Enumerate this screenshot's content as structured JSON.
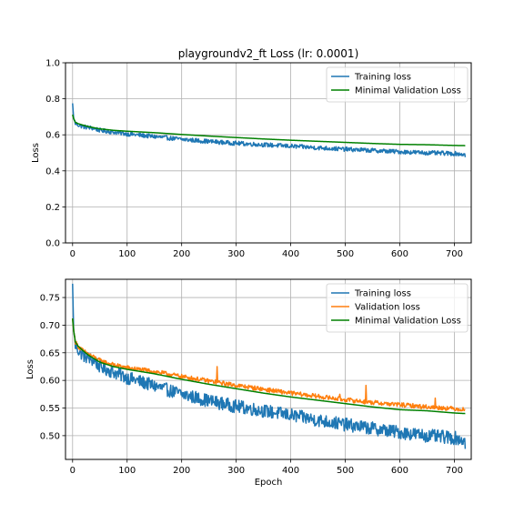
{
  "chart_data": [
    {
      "type": "line",
      "title": "playgroundv2_ft Loss (lr: 0.0001)",
      "xlabel": "",
      "ylabel": "Loss",
      "xlim": [
        -13,
        731
      ],
      "ylim": [
        0.0,
        1.0
      ],
      "xticks": [
        0,
        100,
        200,
        300,
        400,
        500,
        600,
        700
      ],
      "yticks": [
        0.0,
        0.2,
        0.4,
        0.6,
        0.8,
        1.0
      ],
      "ytick_labels": [
        "0.0",
        "0.2",
        "0.4",
        "0.6",
        "0.8",
        "1.0"
      ],
      "grid": true,
      "legend_position": "top-right",
      "series": [
        {
          "name": "Training loss",
          "color": "#1f77b4",
          "x": [
            0,
            2,
            5,
            10,
            20,
            30,
            40,
            50,
            75,
            100,
            150,
            200,
            250,
            300,
            350,
            400,
            450,
            500,
            550,
            600,
            650,
            700,
            710,
            719,
            720
          ],
          "y": [
            0.775,
            0.69,
            0.665,
            0.655,
            0.645,
            0.64,
            0.635,
            0.625,
            0.615,
            0.605,
            0.59,
            0.575,
            0.563,
            0.553,
            0.545,
            0.537,
            0.528,
            0.52,
            0.513,
            0.506,
            0.5,
            0.496,
            0.494,
            0.49,
            0.476
          ],
          "noise": 0.012
        },
        {
          "name": "Minimal Validation Loss",
          "color": "#008000",
          "x": [
            0,
            2,
            5,
            10,
            20,
            30,
            50,
            75,
            100,
            150,
            200,
            250,
            300,
            350,
            400,
            450,
            500,
            550,
            600,
            650,
            700,
            720
          ],
          "y": [
            0.712,
            0.69,
            0.67,
            0.662,
            0.653,
            0.645,
            0.633,
            0.625,
            0.62,
            0.612,
            0.602,
            0.593,
            0.585,
            0.577,
            0.57,
            0.564,
            0.558,
            0.552,
            0.547,
            0.545,
            0.541,
            0.54
          ],
          "step": true
        }
      ]
    },
    {
      "type": "line",
      "title": "",
      "xlabel": "Epoch",
      "ylabel": "Loss",
      "xlim": [
        -13,
        731
      ],
      "ylim": [
        0.457,
        0.783
      ],
      "xticks": [
        0,
        100,
        200,
        300,
        400,
        500,
        600,
        700
      ],
      "yticks": [
        0.5,
        0.55,
        0.6,
        0.65,
        0.7,
        0.75
      ],
      "ytick_labels": [
        "0.50",
        "0.55",
        "0.60",
        "0.65",
        "0.70",
        "0.75"
      ],
      "grid": true,
      "legend_position": "top-right",
      "series": [
        {
          "name": "Training loss",
          "color": "#1f77b4",
          "x": [
            0,
            2,
            5,
            10,
            20,
            30,
            40,
            50,
            75,
            100,
            150,
            200,
            250,
            300,
            350,
            400,
            450,
            500,
            550,
            600,
            650,
            700,
            710,
            719,
            720
          ],
          "y": [
            0.775,
            0.69,
            0.665,
            0.655,
            0.645,
            0.64,
            0.635,
            0.625,
            0.615,
            0.605,
            0.59,
            0.575,
            0.563,
            0.553,
            0.545,
            0.537,
            0.528,
            0.52,
            0.513,
            0.506,
            0.5,
            0.496,
            0.494,
            0.49,
            0.476
          ],
          "noise": 0.012
        },
        {
          "name": "Validation loss",
          "color": "#ff7f0e",
          "x": [
            0,
            2,
            5,
            10,
            20,
            30,
            50,
            75,
            100,
            150,
            200,
            250,
            300,
            350,
            400,
            450,
            500,
            550,
            600,
            650,
            700,
            720
          ],
          "y": [
            0.712,
            0.69,
            0.67,
            0.662,
            0.653,
            0.647,
            0.636,
            0.628,
            0.623,
            0.616,
            0.607,
            0.599,
            0.591,
            0.584,
            0.577,
            0.571,
            0.565,
            0.56,
            0.556,
            0.552,
            0.549,
            0.547
          ],
          "noise": 0.004,
          "spikes": [
            [
              265,
              0.625
            ],
            [
              490,
              0.575
            ],
            [
              538,
              0.591
            ],
            [
              665,
              0.568
            ]
          ]
        },
        {
          "name": "Minimal Validation Loss",
          "color": "#008000",
          "x": [
            0,
            2,
            5,
            10,
            20,
            30,
            50,
            75,
            100,
            150,
            200,
            250,
            300,
            350,
            400,
            450,
            500,
            550,
            600,
            650,
            700,
            720
          ],
          "y": [
            0.712,
            0.69,
            0.67,
            0.662,
            0.653,
            0.645,
            0.633,
            0.625,
            0.62,
            0.612,
            0.602,
            0.593,
            0.585,
            0.577,
            0.57,
            0.564,
            0.558,
            0.552,
            0.547,
            0.545,
            0.541,
            0.54
          ],
          "step": true
        }
      ]
    }
  ]
}
